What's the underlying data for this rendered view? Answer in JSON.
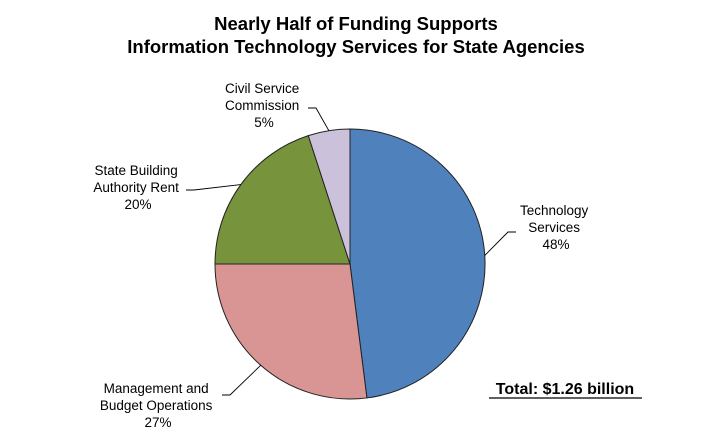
{
  "chart_data": {
    "type": "pie",
    "title_line1": "Nearly Half of Funding Supports",
    "title_line2": "Information Technology Services for State Agencies",
    "slices": [
      {
        "label_lines": [
          "Technology",
          "Services"
        ],
        "pct_text": "48%",
        "value": 48,
        "color": "#4f81bd"
      },
      {
        "label_lines": [
          "Management and",
          "Budget Operations"
        ],
        "pct_text": "27%",
        "value": 27,
        "color": "#d99594"
      },
      {
        "label_lines": [
          "State Building",
          "Authority Rent"
        ],
        "pct_text": "20%",
        "value": 20,
        "color": "#77933c"
      },
      {
        "label_lines": [
          "Civil Service",
          "Commission"
        ],
        "pct_text": "5%",
        "value": 5,
        "color": "#ccc1da"
      }
    ],
    "total_text": "Total: $1.26 billion",
    "start": "12 o'clock",
    "direction": "clockwise"
  }
}
